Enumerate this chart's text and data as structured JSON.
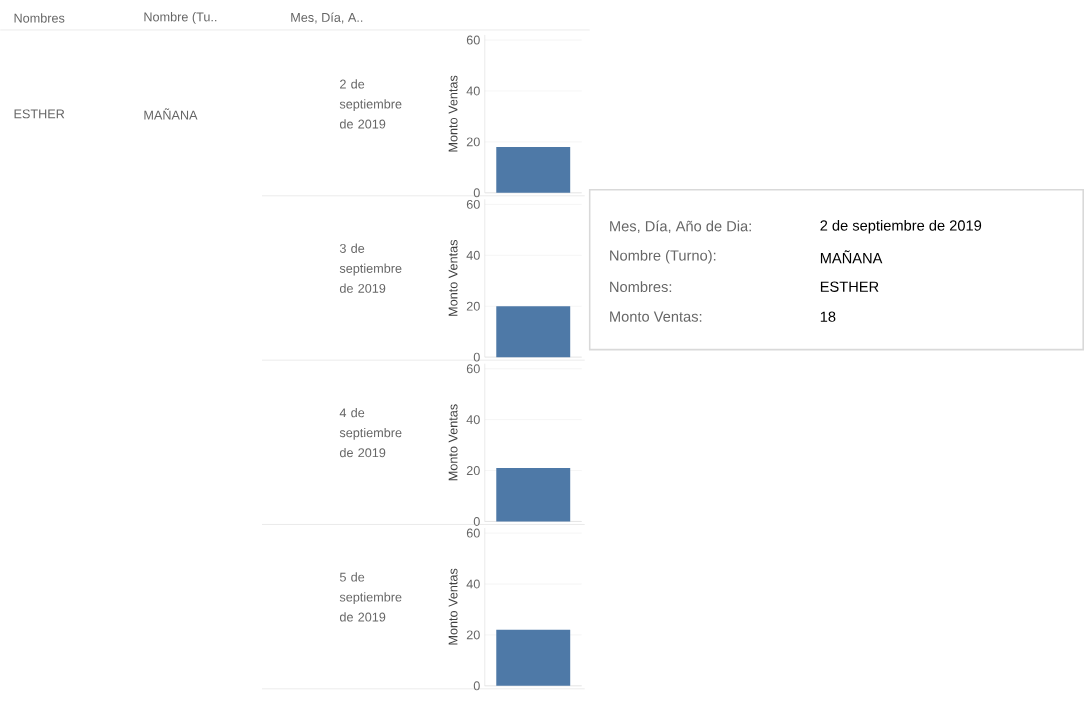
{
  "chart_data": [
    {
      "type": "bar",
      "title": "2 de septiembre de 2019",
      "ylabel": "Monto Ventas",
      "categories": [
        null
      ],
      "values": [
        18
      ],
      "color": "#4e79a7",
      "ylim": [
        0,
        62
      ],
      "yticks": [
        0,
        20,
        40,
        60
      ],
      "grid": "y",
      "annotations": [
        "Nombres",
        "Nombre (Tu..",
        "Mes, Día, A..",
        "ESTHER",
        "MAÑANA",
        "Mes, Día, Año de Dia:",
        "2 de septiembre de 2019",
        "Nombre (Turno):",
        "MAÑANA",
        "Nombres:",
        "ESTHER",
        "Monto Ventas:",
        "18"
      ]
    },
    {
      "type": "bar",
      "title": "3 de septiembre de 2019",
      "ylabel": "Monto Ventas",
      "categories": [
        null
      ],
      "values": [
        20
      ],
      "color": "#4e79a7",
      "ylim": [
        0,
        62
      ],
      "yticks": [
        0,
        20,
        40,
        60
      ],
      "grid": "y"
    },
    {
      "type": "bar",
      "title": "4 de septiembre de 2019",
      "ylabel": "Monto Ventas",
      "categories": [
        null
      ],
      "values": [
        21
      ],
      "color": "#4e79a7",
      "ylim": [
        0,
        62
      ],
      "yticks": [
        0,
        20,
        40,
        60
      ],
      "grid": "y"
    },
    {
      "type": "bar",
      "title": "5 de septiembre de 2019",
      "ylabel": "Monto Ventas",
      "categories": [
        null
      ],
      "values": [
        22
      ],
      "color": "#4e79a7",
      "ylim": [
        0,
        62
      ],
      "yticks": [
        0,
        20,
        40,
        60
      ],
      "grid": "y"
    }
  ]
}
